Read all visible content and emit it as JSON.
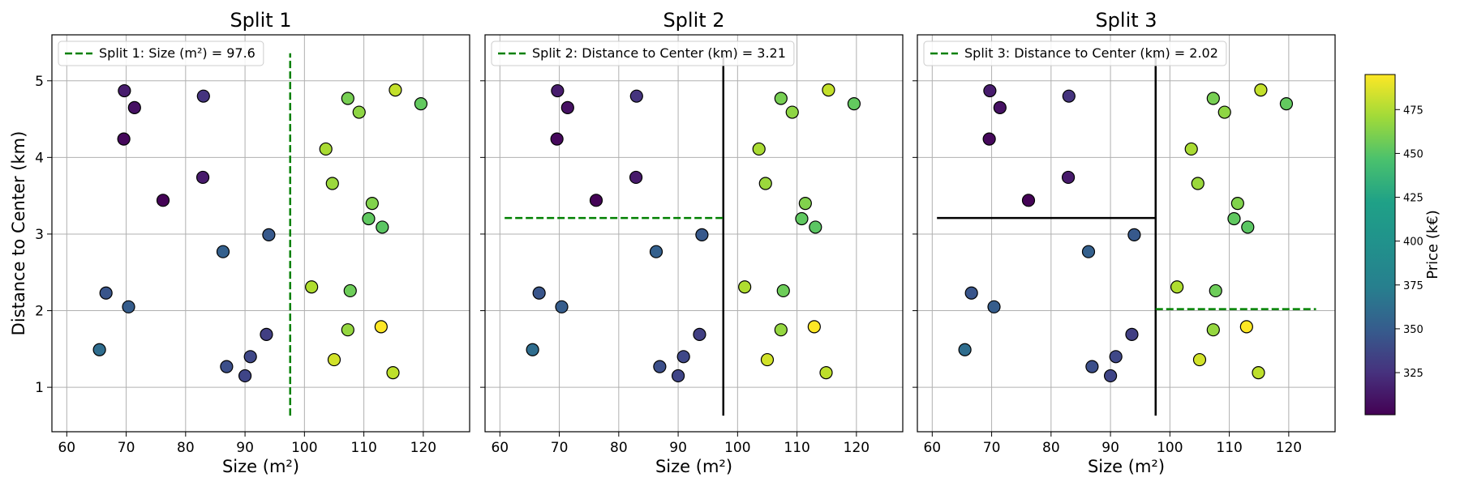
{
  "colors": {
    "split_line": "#008000",
    "prior_line": "#000000",
    "grid": "#b0b0b0",
    "point_edge": "#000000"
  },
  "shared": {
    "xlabel": "Size (m²)",
    "ylabel": "Distance to Center (km)",
    "xlim": [
      57.5,
      127.8
    ],
    "ylim": [
      0.42,
      5.6
    ],
    "xticks": [
      60,
      70,
      80,
      90,
      100,
      110,
      120
    ],
    "yticks": [
      1,
      2,
      3,
      4,
      5
    ]
  },
  "colorbar": {
    "label": "Price (k€)",
    "min": 301,
    "max": 495,
    "ticks": [
      325,
      350,
      375,
      400,
      425,
      450,
      475
    ],
    "colormap": "viridis"
  },
  "chart_data": {
    "type": "scatter",
    "points": [
      {
        "x": 69.7,
        "y": 4.87,
        "price": 316
      },
      {
        "x": 71.4,
        "y": 4.65,
        "price": 310
      },
      {
        "x": 69.6,
        "y": 4.24,
        "price": 305
      },
      {
        "x": 83.0,
        "y": 4.8,
        "price": 330
      },
      {
        "x": 82.9,
        "y": 3.74,
        "price": 315
      },
      {
        "x": 76.2,
        "y": 3.44,
        "price": 302
      },
      {
        "x": 94.0,
        "y": 2.99,
        "price": 355
      },
      {
        "x": 86.3,
        "y": 2.77,
        "price": 360
      },
      {
        "x": 66.6,
        "y": 2.23,
        "price": 352
      },
      {
        "x": 70.4,
        "y": 2.05,
        "price": 358
      },
      {
        "x": 65.5,
        "y": 1.49,
        "price": 370
      },
      {
        "x": 93.6,
        "y": 1.69,
        "price": 337
      },
      {
        "x": 90.9,
        "y": 1.4,
        "price": 343
      },
      {
        "x": 86.9,
        "y": 1.27,
        "price": 348
      },
      {
        "x": 90.0,
        "y": 1.15,
        "price": 341
      },
      {
        "x": 115.3,
        "y": 4.88,
        "price": 478
      },
      {
        "x": 119.6,
        "y": 4.7,
        "price": 448
      },
      {
        "x": 107.3,
        "y": 4.77,
        "price": 455
      },
      {
        "x": 109.2,
        "y": 4.59,
        "price": 462
      },
      {
        "x": 103.6,
        "y": 4.11,
        "price": 470
      },
      {
        "x": 104.7,
        "y": 3.66,
        "price": 466
      },
      {
        "x": 111.4,
        "y": 3.4,
        "price": 458
      },
      {
        "x": 110.8,
        "y": 3.2,
        "price": 447
      },
      {
        "x": 113.1,
        "y": 3.09,
        "price": 445
      },
      {
        "x": 101.2,
        "y": 2.31,
        "price": 472
      },
      {
        "x": 107.7,
        "y": 2.26,
        "price": 452
      },
      {
        "x": 107.3,
        "y": 1.75,
        "price": 464
      },
      {
        "x": 112.9,
        "y": 1.79,
        "price": 495
      },
      {
        "x": 105.0,
        "y": 1.36,
        "price": 482
      },
      {
        "x": 114.9,
        "y": 1.19,
        "price": 476
      }
    ],
    "panels": [
      {
        "title": "Split 1",
        "legend": "Split 1: Size (m²) = 97.6",
        "show_ylabel": true,
        "show_ytick_labels": true,
        "split_lines": [
          {
            "orientation": "vertical",
            "at": 97.6,
            "from": 0.63,
            "to": 5.36,
            "style": "dashed"
          }
        ]
      },
      {
        "title": "Split 2",
        "legend": "Split 2: Distance to Center (km) = 3.21",
        "show_ylabel": false,
        "show_ytick_labels": false,
        "split_lines": [
          {
            "orientation": "vertical",
            "at": 97.6,
            "from": 0.63,
            "to": 5.36,
            "style": "solid"
          },
          {
            "orientation": "horizontal",
            "at": 3.21,
            "from": 60.8,
            "to": 97.6,
            "style": "dashed"
          }
        ]
      },
      {
        "title": "Split 3",
        "legend": "Split 3: Distance to Center (km) = 2.02",
        "show_ylabel": false,
        "show_ytick_labels": false,
        "split_lines": [
          {
            "orientation": "vertical",
            "at": 97.6,
            "from": 0.63,
            "to": 5.36,
            "style": "solid"
          },
          {
            "orientation": "horizontal",
            "at": 3.21,
            "from": 60.8,
            "to": 97.6,
            "style": "solid"
          },
          {
            "orientation": "horizontal",
            "at": 2.02,
            "from": 97.6,
            "to": 124.6,
            "style": "dashed"
          }
        ]
      }
    ]
  }
}
